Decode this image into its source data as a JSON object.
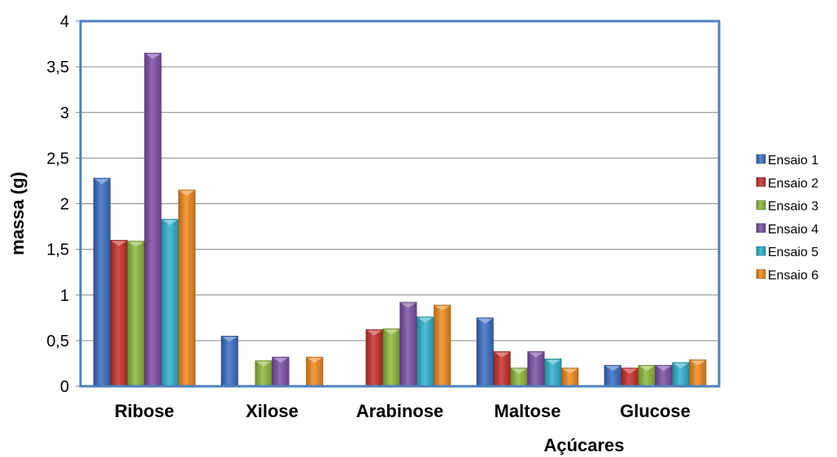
{
  "chart_data": {
    "type": "bar",
    "title": "",
    "xlabel": "Açúcares",
    "ylabel": "massa (g)",
    "ylim": [
      0,
      4
    ],
    "yticks": [
      0,
      0.5,
      1,
      1.5,
      2,
      2.5,
      3,
      3.5,
      4
    ],
    "ytick_labels": [
      "0",
      "0,5",
      "1",
      "1,5",
      "2",
      "2,5",
      "3",
      "3,5",
      "4"
    ],
    "grid": true,
    "legend": "right",
    "categories": [
      "Ribose",
      "Xilose",
      "Arabinose",
      "Maltose",
      "Glucose"
    ],
    "series": [
      {
        "name": "Ensaio 1",
        "color": "#3a6fc4",
        "values": [
          2.28,
          0.55,
          0,
          0.75,
          0.23
        ]
      },
      {
        "name": "Ensaio 2",
        "color": "#c9302c",
        "values": [
          1.6,
          0,
          0.62,
          0.38,
          0.2
        ]
      },
      {
        "name": "Ensaio 3",
        "color": "#8dbb3a",
        "values": [
          1.59,
          0.28,
          0.63,
          0.2,
          0.23
        ]
      },
      {
        "name": "Ensaio 4",
        "color": "#7e4fa6",
        "values": [
          3.65,
          0.32,
          0.92,
          0.38,
          0.23
        ]
      },
      {
        "name": "Ensaio 5",
        "color": "#2fb2cc",
        "values": [
          1.83,
          0,
          0.76,
          0.3,
          0.26
        ]
      },
      {
        "name": "Ensaio 6",
        "color": "#f08a1c",
        "values": [
          2.15,
          0.32,
          0.89,
          0.2,
          0.29
        ]
      }
    ]
  }
}
